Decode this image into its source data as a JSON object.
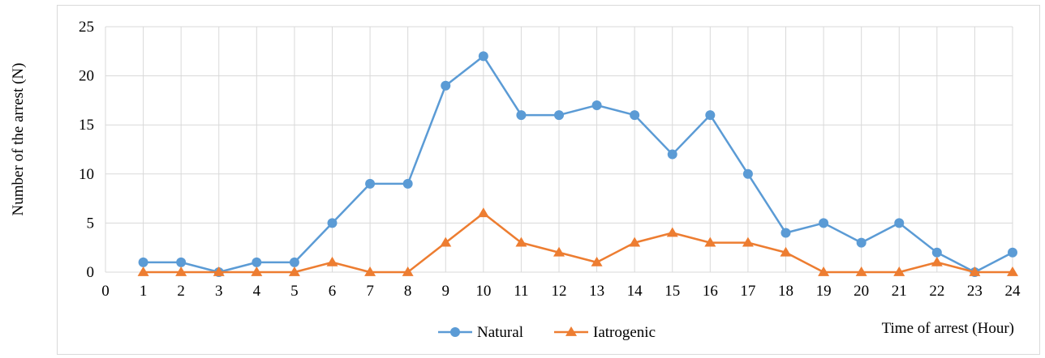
{
  "chart_data": {
    "type": "line",
    "title": "",
    "xlabel": "Time of arrest (Hour)",
    "ylabel": "Number of the arrest (N)",
    "x": [
      1,
      2,
      3,
      4,
      5,
      6,
      7,
      8,
      9,
      10,
      11,
      12,
      13,
      14,
      15,
      16,
      17,
      18,
      19,
      20,
      21,
      22,
      23,
      24
    ],
    "x_ticks": [
      0,
      1,
      2,
      3,
      4,
      5,
      6,
      7,
      8,
      9,
      10,
      11,
      12,
      13,
      14,
      15,
      16,
      17,
      18,
      19,
      20,
      21,
      22,
      23,
      24
    ],
    "y_ticks": [
      0,
      5,
      10,
      15,
      20,
      25
    ],
    "xlim": [
      0,
      24
    ],
    "ylim": [
      0,
      25
    ],
    "grid": "major both axes",
    "legend_position": "bottom",
    "series": [
      {
        "name": "Natural",
        "marker": "circle",
        "color": "#5b9bd5",
        "values": [
          1,
          1,
          0,
          1,
          1,
          5,
          9,
          9,
          19,
          22,
          16,
          16,
          17,
          16,
          12,
          16,
          10,
          4,
          5,
          3,
          5,
          2,
          0,
          2
        ]
      },
      {
        "name": "Iatrogenic",
        "marker": "triangle",
        "color": "#ed7d31",
        "values": [
          0,
          0,
          0,
          0,
          0,
          1,
          0,
          0,
          3,
          6,
          3,
          2,
          1,
          3,
          4,
          3,
          3,
          2,
          0,
          0,
          0,
          1,
          0,
          0
        ]
      }
    ]
  }
}
